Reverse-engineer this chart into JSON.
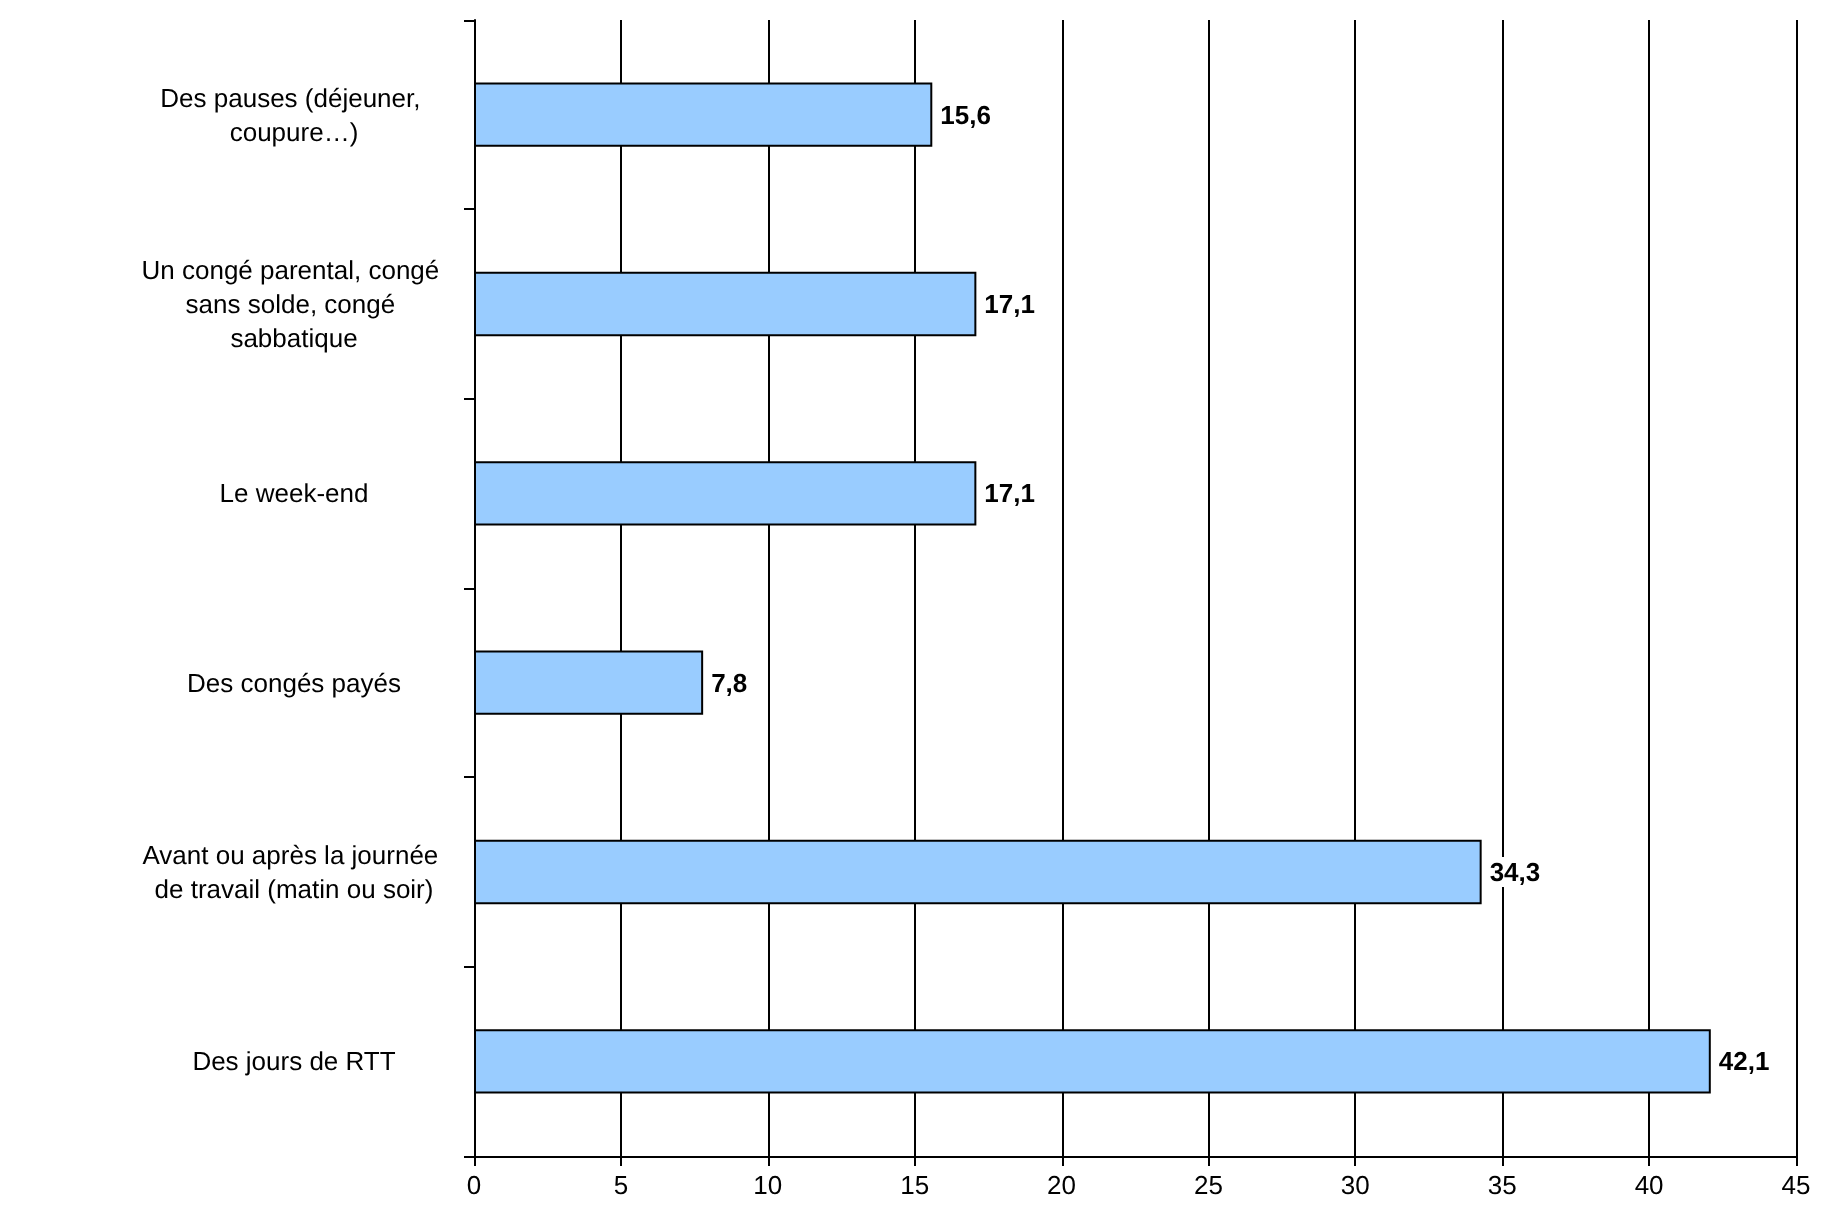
{
  "chart_data": {
    "type": "bar",
    "orientation": "horizontal",
    "categories": [
      "Des pauses (déjeuner, coupure…)",
      "Un congé parental, congé sans solde, congé sabbatique",
      "Le week-end",
      "Des congés payés",
      "Avant ou après la journée de travail (matin ou soir)",
      "Des jours de RTT"
    ],
    "values": [
      15.6,
      17.1,
      17.1,
      7.8,
      34.3,
      42.1
    ],
    "color": "#99ccff",
    "xlim": [
      0,
      45
    ],
    "xticks": [
      0,
      5,
      10,
      15,
      20,
      25,
      30,
      35,
      40,
      45
    ],
    "grid": "x",
    "value_labels": [
      "15,6",
      "17,1",
      "17,1",
      "7,8",
      "34,3",
      "42,1"
    ]
  }
}
